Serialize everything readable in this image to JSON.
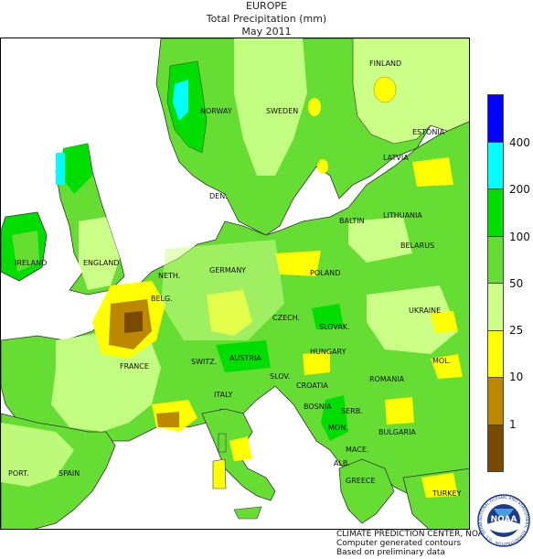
{
  "title": {
    "region": "EUROPE",
    "variable": "Total Precipitation (mm)",
    "period": "May 2011"
  },
  "legend": {
    "ticks": [
      "400",
      "200",
      "100",
      "50",
      "25",
      "10",
      "1"
    ],
    "bins": [
      {
        "color": "#0000ff",
        "range": ">400"
      },
      {
        "color": "#00ffff",
        "range": "200-400"
      },
      {
        "color": "#00dd00",
        "range": "100-200"
      },
      {
        "color": "#66dd33",
        "range": "50-100"
      },
      {
        "color": "#ccff88",
        "range": "25-50"
      },
      {
        "color": "#ffff00",
        "range": "10-25"
      },
      {
        "color": "#bb8800",
        "range": "1-10"
      },
      {
        "color": "#7a4a00",
        "range": "<1"
      }
    ]
  },
  "country_labels": [
    "FINLAND",
    "NORWAY",
    "SWEDEN",
    "ESTONIA",
    "LATVIA",
    "DEN.",
    "LITHUANIA",
    "BALTIN",
    "BELARUS",
    "IRELAND",
    "ENGLAND",
    "NETH.",
    "GERMANY",
    "POLAND",
    "BELG.",
    "CZECH.",
    "UKRAINE",
    "SLOVAK.",
    "FRANCE",
    "SWITZ.",
    "AUSTRIA",
    "HUNGARY",
    "MOL.",
    "ROMANIA",
    "SLOV.",
    "CROATIA",
    "ITALY",
    "BOSNIA",
    "SERB.",
    "MON.",
    "BULGARIA",
    "MACE.",
    "ALB.",
    "GREECE",
    "PORT.",
    "SPAIN",
    "TURKEY"
  ],
  "credits": {
    "line1": "CLIMATE PREDICTION CENTER, NOAA",
    "line2": "Computer generated contours",
    "line3": "Based on preliminary data"
  },
  "logo": {
    "text": "NOAA",
    "ring_text": "NATIONAL OCEANIC AND ATMOSPHERIC ADMINISTRATION · U.S. DEPARTMENT OF COMMERCE"
  },
  "colors": {
    "sea": "#ffffff",
    "base_land": "#66dd33",
    "light_green": "#ccff88",
    "green": "#00dd00",
    "cyan": "#00ffff",
    "yellow": "#ffff00",
    "brown_light": "#bb8800",
    "brown_dark": "#7a4a00",
    "boundary": "#333333"
  }
}
